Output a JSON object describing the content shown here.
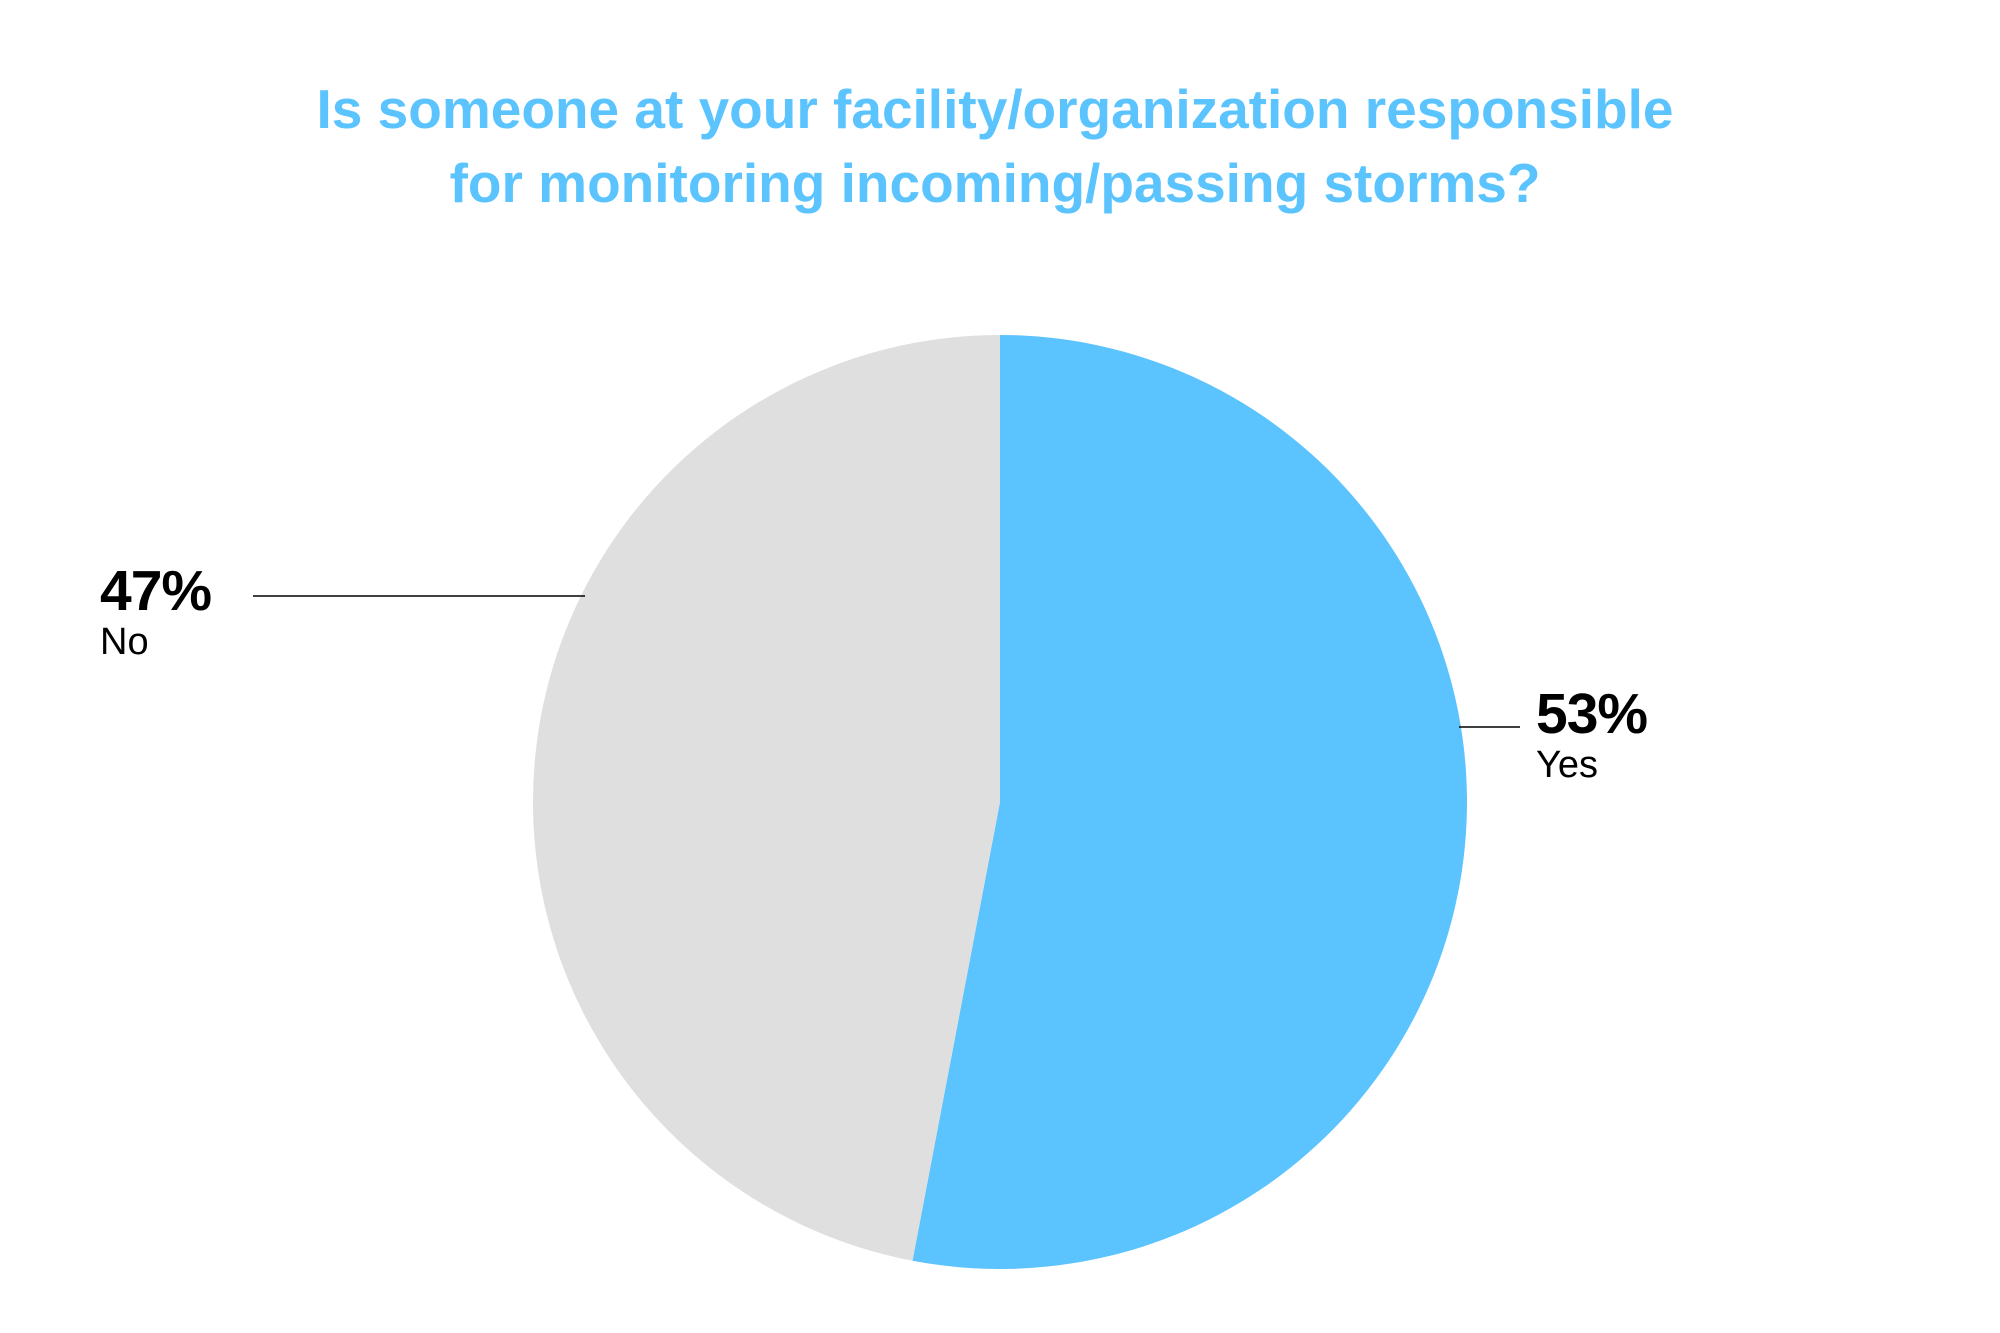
{
  "chart_data": {
    "type": "pie",
    "title_lines": [
      "Is someone at your facility/organization responsible",
      "for monitoring incoming/passing storms?"
    ],
    "slices": [
      {
        "label": "Yes",
        "value": 53,
        "value_label": "53%",
        "color": "#5bc3fd"
      },
      {
        "label": "No",
        "value": 47,
        "value_label": "47%",
        "color": "#dfdfdf"
      }
    ],
    "start_angle": "12 o'clock, clockwise",
    "title_color": "#5bc3fd",
    "leader_line_color": "#000000"
  }
}
